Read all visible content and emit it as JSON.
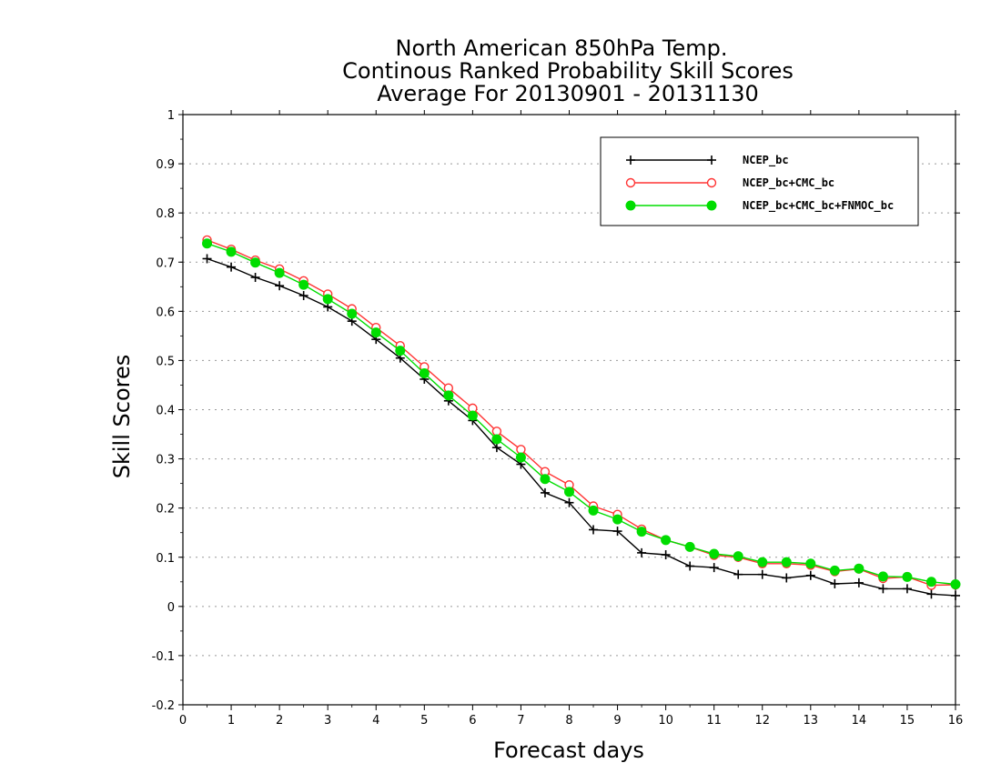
{
  "chart_data": {
    "type": "line",
    "title_lines": [
      "North American 850hPa Temp.",
      "Continous Ranked Probability Skill Scores",
      "Average For 20130901 - 20131130"
    ],
    "xlabel": "Forecast days",
    "ylabel": "Skill Scores",
    "xlim": [
      0,
      16
    ],
    "ylim": [
      -0.2,
      1
    ],
    "x_ticks": [
      0,
      1,
      2,
      3,
      4,
      5,
      6,
      7,
      8,
      9,
      10,
      11,
      12,
      13,
      14,
      15,
      16
    ],
    "y_ticks": [
      -0.2,
      -0.1,
      0,
      0.1,
      0.2,
      0.3,
      0.4,
      0.5,
      0.6,
      0.7,
      0.8,
      0.9,
      1
    ],
    "y_tick_labels": [
      "-0.2",
      "-0.1",
      "0",
      "0.1",
      "0.2",
      "0.3",
      "0.4",
      "0.5",
      "0.6",
      "0.7",
      "0.8",
      "0.9",
      "1"
    ],
    "grid": "horizontal dotted",
    "legend_position": "top-right",
    "x": [
      0.5,
      1,
      1.5,
      2,
      2.5,
      3,
      3.5,
      4,
      4.5,
      5,
      5.5,
      6,
      6.5,
      7,
      7.5,
      8,
      8.5,
      9,
      9.5,
      10,
      10.5,
      11,
      11.5,
      12,
      12.5,
      13,
      13.5,
      14,
      14.5,
      15,
      15.5,
      16
    ],
    "series": [
      {
        "name": "NCEP_bc",
        "color": "#000000",
        "marker": "plus",
        "values": [
          0.707,
          0.69,
          0.669,
          0.652,
          0.632,
          0.609,
          0.58,
          0.543,
          0.505,
          0.462,
          0.418,
          0.378,
          0.323,
          0.289,
          0.231,
          0.211,
          0.156,
          0.153,
          0.109,
          0.105,
          0.082,
          0.079,
          0.065,
          0.065,
          0.058,
          0.063,
          0.046,
          0.048,
          0.036,
          0.036,
          0.025,
          0.022
        ]
      },
      {
        "name": "NCEP_bc+CMC_bc",
        "color": "#ff3333",
        "marker": "open-circle",
        "values": [
          0.745,
          0.726,
          0.704,
          0.686,
          0.662,
          0.635,
          0.605,
          0.567,
          0.53,
          0.487,
          0.444,
          0.403,
          0.356,
          0.319,
          0.274,
          0.247,
          0.204,
          0.187,
          0.157,
          0.135,
          0.121,
          0.104,
          0.1,
          0.087,
          0.087,
          0.084,
          0.071,
          0.076,
          0.057,
          0.06,
          0.043,
          0.044
        ]
      },
      {
        "name": "NCEP_bc+CMC_bc+FNMOC_bc",
        "color": "#00dd00",
        "marker": "filled-circle",
        "values": [
          0.738,
          0.721,
          0.699,
          0.678,
          0.654,
          0.625,
          0.595,
          0.557,
          0.52,
          0.474,
          0.429,
          0.388,
          0.34,
          0.303,
          0.259,
          0.233,
          0.195,
          0.177,
          0.152,
          0.135,
          0.121,
          0.107,
          0.102,
          0.09,
          0.09,
          0.087,
          0.073,
          0.077,
          0.061,
          0.06,
          0.05,
          0.045
        ]
      }
    ]
  }
}
